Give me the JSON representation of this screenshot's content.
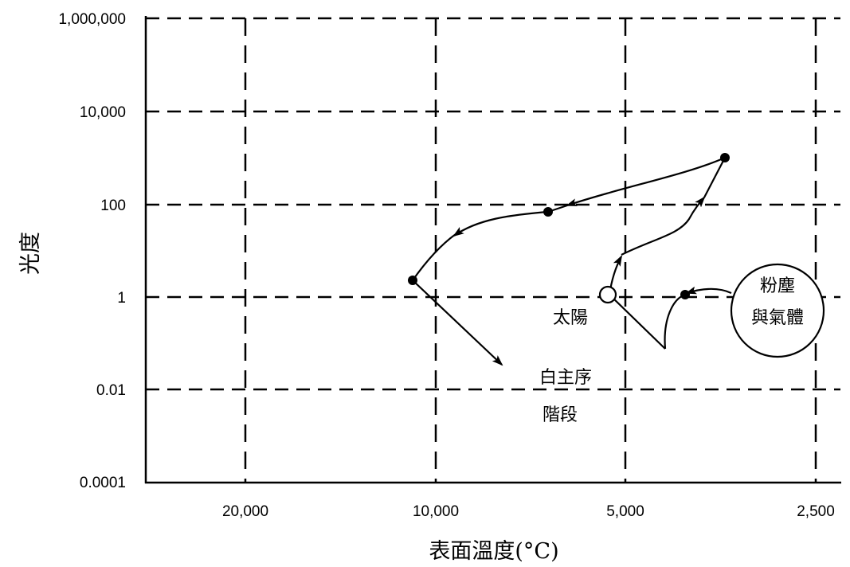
{
  "y_axis": {
    "title": "光度",
    "ticks": [
      "1,000,000",
      "10,000",
      "100",
      "1",
      "0.01",
      "0.0001"
    ]
  },
  "x_axis": {
    "title": "表面溫度(°C)",
    "ticks": [
      "20,000",
      "10,000",
      "5,000",
      "2,500"
    ]
  },
  "labels": {
    "sun": "太陽",
    "cloud_line1": "粉塵",
    "cloud_line2": "與氣體",
    "main_sequence_line1": "白主序",
    "main_sequence_line2": "階段"
  }
}
